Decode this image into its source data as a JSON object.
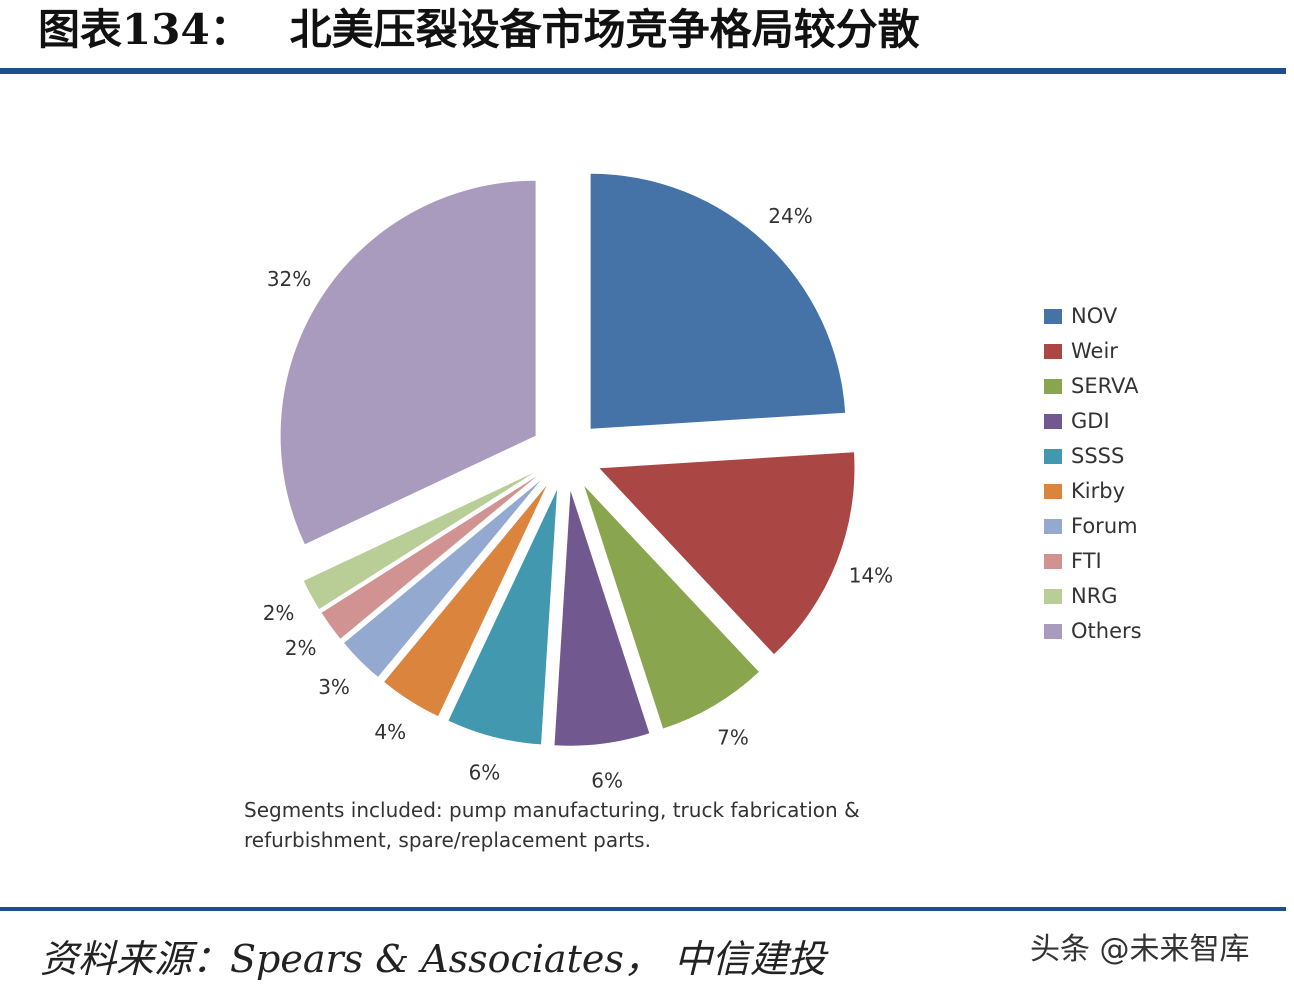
{
  "header": {
    "figure_number": "图表134：",
    "title": "北美压裂设备市场竞争格局较分散"
  },
  "chart_data": {
    "type": "pie",
    "categories": [
      "NOV",
      "Weir",
      "SERVA",
      "GDI",
      "SSSS",
      "Kirby",
      "Forum",
      "FTI",
      "NRG",
      "Others"
    ],
    "values": [
      24,
      14,
      7,
      6,
      6,
      4,
      3,
      2,
      2,
      32
    ],
    "labels": [
      "24%",
      "14%",
      "7%",
      "6%",
      "6%",
      "4%",
      "3%",
      "2%",
      "2%",
      "32%"
    ],
    "colors": [
      "#4572a7",
      "#aa4643",
      "#89a54e",
      "#71588f",
      "#4198af",
      "#db843d",
      "#93a9cf",
      "#d19392",
      "#b9cd96",
      "#a99bbd"
    ],
    "legend_position": "right",
    "exploded": true
  },
  "note": {
    "line1": "Segments included:  pump manufacturing, truck fabrication &",
    "line2": "refurbishment, spare/replacement parts."
  },
  "source": "资料来源：Spears & Associates， 中信建投",
  "watermark": "头条 @未来智库"
}
